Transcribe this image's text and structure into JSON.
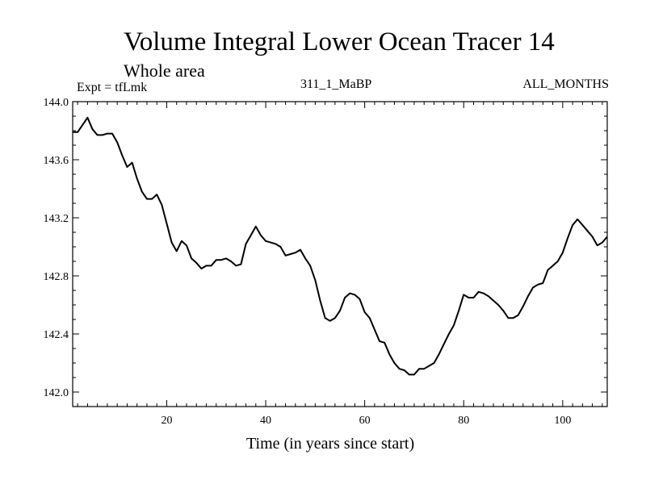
{
  "chart_data": {
    "type": "line",
    "title": "Volume Integral Lower Ocean Tracer 14",
    "subtitle": "Whole area",
    "expt_label": "Expt = tfLmk",
    "run_id": "311_1_MaBP",
    "months_label": "ALL_MONTHS",
    "xlabel": "Time (in years since start)",
    "ylabel": "",
    "xlim": [
      1,
      109
    ],
    "ylim": [
      141.9,
      144.0
    ],
    "x_ticks": [
      20,
      40,
      60,
      80,
      100
    ],
    "x_tick_labels": [
      "20",
      "40",
      "60",
      "80",
      "100"
    ],
    "y_ticks": [
      142.0,
      142.4,
      142.8,
      143.2,
      143.6,
      144.0
    ],
    "y_tick_labels": [
      "142.0",
      "142.4",
      "142.8",
      "143.2",
      "143.6",
      "144.0"
    ],
    "x_minor_step": 2,
    "y_minor_step": 0.1,
    "series": [
      {
        "name": "Lower Ocean Tracer 14",
        "x": [
          1,
          2,
          3,
          4,
          5,
          6,
          7,
          8,
          9,
          10,
          11,
          12,
          13,
          14,
          15,
          16,
          17,
          18,
          19,
          20,
          21,
          22,
          23,
          24,
          25,
          26,
          27,
          28,
          29,
          30,
          31,
          32,
          33,
          34,
          35,
          36,
          37,
          38,
          39,
          40,
          41,
          42,
          43,
          44,
          45,
          46,
          47,
          48,
          49,
          50,
          51,
          52,
          53,
          54,
          55,
          56,
          57,
          58,
          59,
          60,
          61,
          62,
          63,
          64,
          65,
          66,
          67,
          68,
          69,
          70,
          71,
          72,
          73,
          74,
          75,
          76,
          77,
          78,
          79,
          80,
          81,
          82,
          83,
          84,
          85,
          86,
          87,
          88,
          89,
          90,
          91,
          92,
          93,
          94,
          95,
          96,
          97,
          98,
          99,
          100,
          101,
          102,
          103,
          104,
          105,
          106,
          107,
          108,
          109
        ],
        "values": [
          143.79,
          143.79,
          143.84,
          143.89,
          143.81,
          143.77,
          143.77,
          143.78,
          143.78,
          143.72,
          143.63,
          143.55,
          143.58,
          143.47,
          143.38,
          143.33,
          143.33,
          143.36,
          143.29,
          143.16,
          143.03,
          142.97,
          143.04,
          143.01,
          142.92,
          142.89,
          142.85,
          142.87,
          142.87,
          142.91,
          142.91,
          142.92,
          142.9,
          142.87,
          142.88,
          143.02,
          143.08,
          143.14,
          143.08,
          143.04,
          143.03,
          143.02,
          143.0,
          142.94,
          142.95,
          142.96,
          142.98,
          142.92,
          142.87,
          142.77,
          142.63,
          142.51,
          142.49,
          142.51,
          142.56,
          142.65,
          142.68,
          142.67,
          142.64,
          142.55,
          142.51,
          142.43,
          142.35,
          142.34,
          142.26,
          142.2,
          142.16,
          142.15,
          142.12,
          142.12,
          142.16,
          142.16,
          142.18,
          142.2,
          142.26,
          142.33,
          142.4,
          142.46,
          142.56,
          142.67,
          142.65,
          142.65,
          142.69,
          142.68,
          142.66,
          142.63,
          142.6,
          142.56,
          142.51,
          142.51,
          142.53,
          142.59,
          142.66,
          142.72,
          142.74,
          142.75,
          142.84,
          142.87,
          142.9,
          142.96,
          143.06,
          143.15,
          143.19,
          143.15,
          143.11,
          143.07,
          143.01,
          143.03,
          143.07
        ]
      }
    ]
  }
}
